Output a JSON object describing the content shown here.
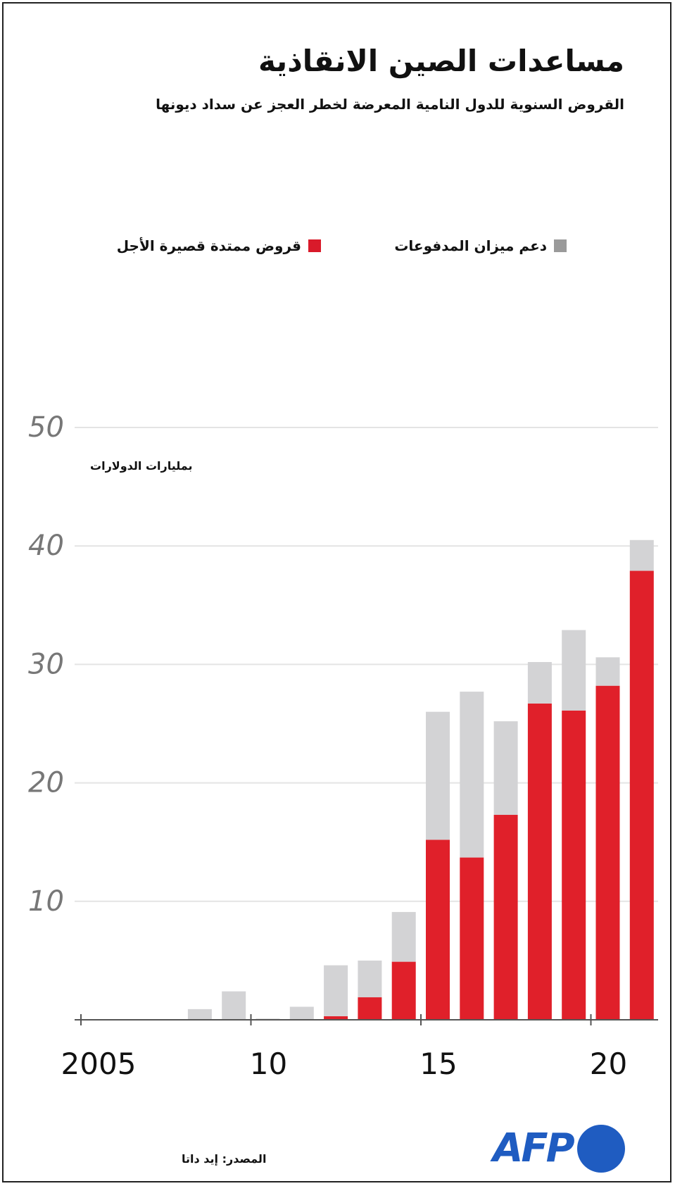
{
  "title": "مساعدات الصين الانقاذية",
  "subtitle": "القروض السنوية للدول النامية المعرضة لخطر العجز عن سداد ديونها",
  "legend": [
    {
      "label": "دعم ميزان المدفوعات",
      "color": "#9a9a9a"
    },
    {
      "label": "قروض ممتدة قصيرة الأجل",
      "color": "#d91a2a"
    }
  ],
  "unit_label": "بمليارات الدولارات",
  "source": "المصدر: إيد داتا",
  "logo": {
    "text": "AFP",
    "color": "#1f5cc1"
  },
  "chart_data": {
    "type": "bar",
    "stacked": true,
    "categories": [
      2005,
      2006,
      2007,
      2008,
      2009,
      2010,
      2011,
      2012,
      2013,
      2014,
      2015,
      2016,
      2017,
      2018,
      2019,
      2020,
      2021
    ],
    "series": [
      {
        "name": "قروض ممتدة قصيرة الأجل",
        "color": "#e0202a",
        "values": [
          0,
          0,
          0,
          0,
          0,
          0,
          0,
          0.3,
          1.9,
          4.9,
          15.2,
          13.7,
          17.3,
          26.7,
          26.1,
          28.2,
          37.9
        ]
      },
      {
        "name": "دعم ميزان المدفوعات",
        "color": "#d3d3d5",
        "values": [
          0,
          0,
          0,
          0.9,
          2.4,
          0.1,
          1.1,
          4.3,
          3.1,
          4.2,
          10.8,
          14.0,
          7.9,
          3.5,
          6.8,
          2.4,
          2.6
        ]
      }
    ],
    "yticks": [
      10,
      20,
      30,
      40,
      50
    ],
    "xtick_labels": [
      {
        "year": 2005,
        "label": "2005"
      },
      {
        "year": 2010,
        "label": "10"
      },
      {
        "year": 2015,
        "label": "15"
      },
      {
        "year": 2020,
        "label": "20"
      }
    ],
    "ylim": [
      0,
      50
    ],
    "grid": true
  }
}
